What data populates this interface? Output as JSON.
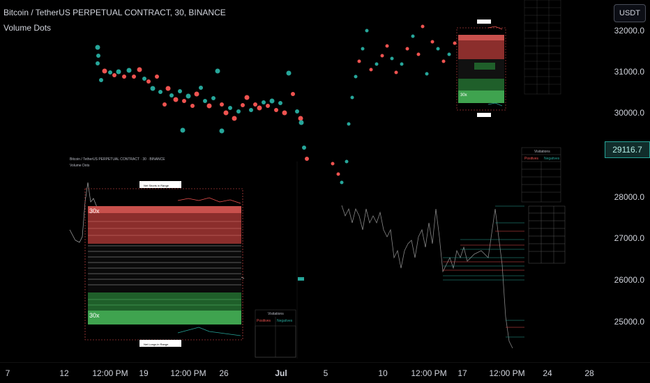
{
  "header": {
    "title": "Bitcoin / TetherUS PERPETUAL CONTRACT, 30, BINANCE",
    "indicator": "Volume Dots"
  },
  "currency_button": "USDT",
  "current_price": "29116.7",
  "price_axis": {
    "labels": [
      "32000.0",
      "31000.0",
      "30000.0",
      "28000.0",
      "27000.0",
      "26000.0",
      "25000.0"
    ]
  },
  "time_axis": {
    "labels": [
      "7",
      "12",
      "12:00 PM",
      "19",
      "12:00 PM",
      "26",
      "Jul",
      "5",
      "10",
      "12:00 PM",
      "17",
      "12:00 PM",
      "24",
      "28"
    ]
  },
  "embedded_left": {
    "title": "Bitcoin / TetherUS PERPETUAL CONTRACT · 30 · BINANCE",
    "indicator": "Volume Dots",
    "band_label_top": "30x",
    "band_label_bottom": "30x",
    "upper_box_text": "Net Shorts in Range",
    "lower_box_text": "Net Longs in Range",
    "table_title": "Visitations",
    "table_headers": [
      "Positives",
      "Negatives"
    ]
  },
  "embedded_right": {
    "table_title": "Visitations",
    "table_headers": [
      "Positives",
      "Negatives"
    ],
    "band_label": "30x"
  },
  "colors": {
    "bull": "#26a69a",
    "bear": "#ef5350",
    "background": "#000000"
  }
}
